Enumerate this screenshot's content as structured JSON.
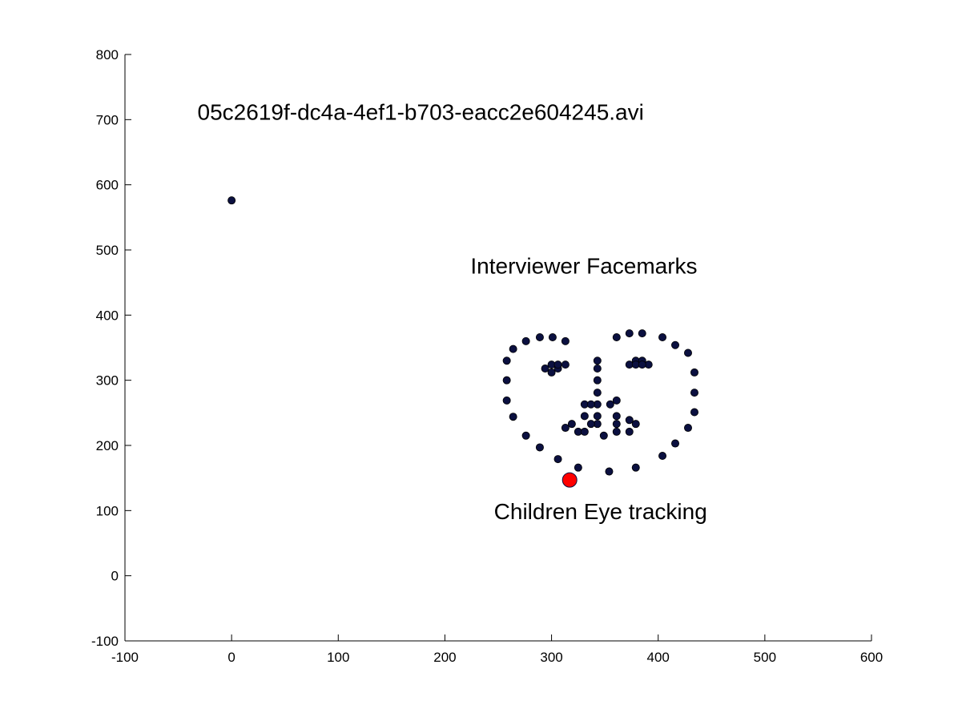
{
  "chart_data": {
    "type": "scatter",
    "xlim": [
      -100,
      600
    ],
    "ylim": [
      -100,
      800
    ],
    "xticks": [
      "-100",
      "0",
      "100",
      "200",
      "300",
      "400",
      "500",
      "600"
    ],
    "yticks": [
      "-100",
      "0",
      "100",
      "200",
      "300",
      "400",
      "500",
      "600",
      "700",
      "800"
    ],
    "grid": false,
    "annotations": [
      {
        "id": "filename",
        "text": "05c2619f-dc4a-4ef1-b703-eacc2e604245.avi",
        "x": -32,
        "y": 700
      },
      {
        "id": "facemarks-label",
        "text": "Interviewer Facemarks",
        "x": 224,
        "y": 464
      },
      {
        "id": "eye-label",
        "text": "Children Eye tracking",
        "x": 246,
        "y": 87
      }
    ],
    "series": [
      {
        "color": "#0b1040",
        "points": [
          [
            0,
            576
          ],
          [
            258,
            330
          ],
          [
            258,
            300
          ],
          [
            258,
            269
          ],
          [
            264,
            244
          ],
          [
            276,
            215
          ],
          [
            289,
            197
          ],
          [
            306,
            179
          ],
          [
            325,
            166
          ],
          [
            354,
            160
          ],
          [
            379,
            166
          ],
          [
            404,
            184
          ],
          [
            416,
            203
          ],
          [
            428,
            227
          ],
          [
            434,
            251
          ],
          [
            434,
            281
          ],
          [
            434,
            312
          ],
          [
            428,
            342
          ],
          [
            416,
            354
          ],
          [
            404,
            366
          ],
          [
            385,
            372
          ],
          [
            373,
            372
          ],
          [
            361,
            366
          ],
          [
            264,
            348
          ],
          [
            276,
            360
          ],
          [
            289,
            366
          ],
          [
            301,
            366
          ],
          [
            313,
            360
          ],
          [
            294,
            318
          ],
          [
            300,
            312
          ],
          [
            306,
            318
          ],
          [
            300,
            324
          ],
          [
            306,
            324
          ],
          [
            313,
            324
          ],
          [
            373,
            324
          ],
          [
            379,
            330
          ],
          [
            385,
            330
          ],
          [
            391,
            324
          ],
          [
            379,
            324
          ],
          [
            385,
            324
          ],
          [
            343,
            330
          ],
          [
            343,
            318
          ],
          [
            343,
            300
          ],
          [
            343,
            281
          ],
          [
            343,
            263
          ],
          [
            343,
            245
          ],
          [
            343,
            233
          ],
          [
            331,
            263
          ],
          [
            337,
            263
          ],
          [
            355,
            263
          ],
          [
            361,
            269
          ],
          [
            313,
            227
          ],
          [
            319,
            233
          ],
          [
            325,
            221
          ],
          [
            331,
            221
          ],
          [
            331,
            245
          ],
          [
            337,
            233
          ],
          [
            349,
            215
          ],
          [
            361,
            221
          ],
          [
            361,
            233
          ],
          [
            361,
            245
          ],
          [
            373,
            239
          ],
          [
            373,
            221
          ],
          [
            379,
            233
          ]
        ]
      },
      {
        "color": "#ff0000",
        "points": [
          [
            317,
            147
          ]
        ]
      }
    ]
  }
}
